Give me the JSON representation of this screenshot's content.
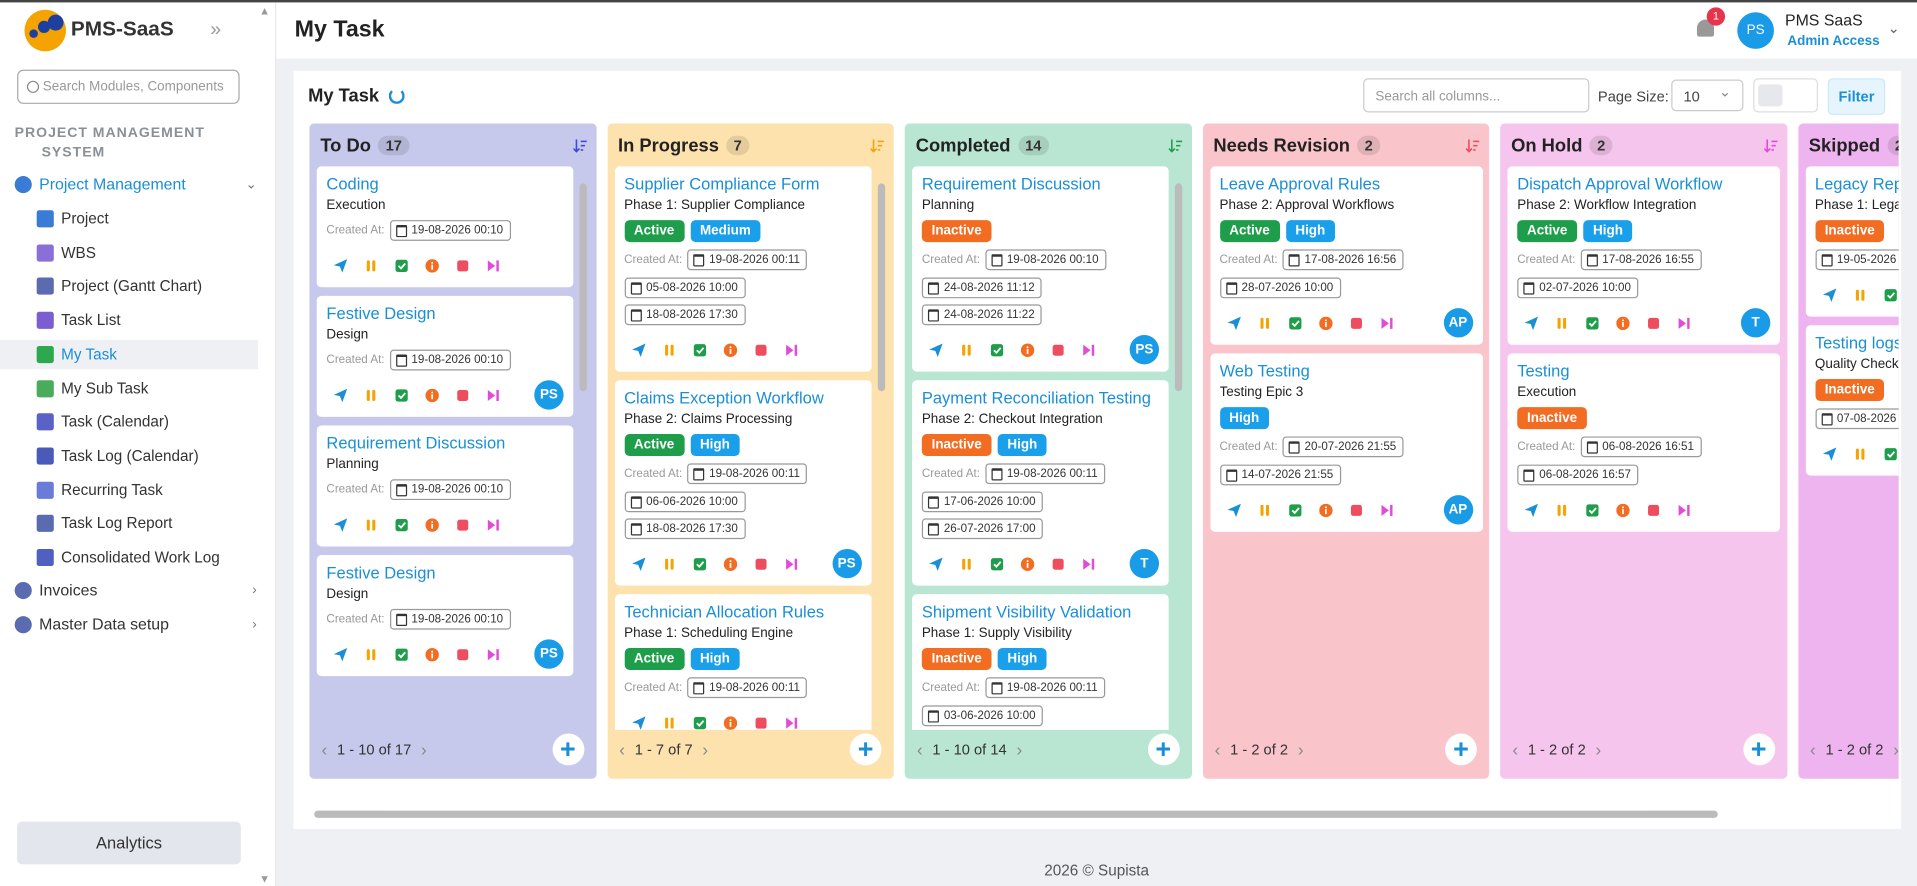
{
  "sidebar": {
    "brand": "PMS-SaaS",
    "search_placeholder": "Search Modules, Components",
    "section": "PROJECT MANAGEMENT SYSTEM",
    "menu": [
      {
        "label": "Project Management",
        "items": [
          "Project",
          "WBS",
          "Project (Gantt Chart)",
          "Task List",
          "My Task",
          "My Sub Task",
          "Task (Calendar)",
          "Task Log (Calendar)",
          "Recurring Task",
          "Task Log Report",
          "Consolidated Work Log"
        ]
      },
      {
        "label": "Invoices"
      },
      {
        "label": "Master Data setup"
      }
    ],
    "analytics": "Analytics"
  },
  "header": {
    "title": "My Task",
    "notification_count": 1,
    "user_initials": "PS",
    "user_name": "PMS SaaS",
    "user_role": "Admin Access"
  },
  "toolbar": {
    "title": "My Task",
    "search_placeholder": "Search all columns...",
    "page_size_label": "Page Size:",
    "page_size": 10,
    "filter": "Filter"
  },
  "board": {
    "created_label": "Created At:",
    "columns": [
      {
        "name": "To Do",
        "count": 17,
        "pagination": "1 - 10 of 17",
        "cards": [
          {
            "title": "Coding",
            "subtitle": "Execution",
            "tags": [],
            "created": "19-08-2026 00:10",
            "dates": []
          },
          {
            "title": "Festive Design",
            "subtitle": "Design",
            "tags": [],
            "created": "19-08-2026 00:10",
            "dates": [],
            "avatar": "PS"
          },
          {
            "title": "Requirement Discussion",
            "subtitle": "Planning",
            "tags": [],
            "created": "19-08-2026 00:10",
            "dates": []
          },
          {
            "title": "Festive Design",
            "subtitle": "Design",
            "tags": [],
            "created": "19-08-2026 00:10",
            "dates": [],
            "avatar": "PS"
          }
        ]
      },
      {
        "name": "In Progress",
        "count": 7,
        "pagination": "1 - 7 of 7",
        "cards": [
          {
            "title": "Supplier Compliance Form",
            "subtitle": "Phase 1: Supplier Compliance",
            "tags": [
              "Active",
              "Medium"
            ],
            "created": "19-08-2026 00:11",
            "dates": [
              "05-08-2026 10:00",
              "18-08-2026 17:30"
            ]
          },
          {
            "title": "Claims Exception Workflow",
            "subtitle": "Phase 2: Claims Processing",
            "tags": [
              "Active",
              "High"
            ],
            "created": "19-08-2026 00:11",
            "dates": [
              "06-06-2026 10:00",
              "18-08-2026 17:30"
            ],
            "avatar": "PS"
          },
          {
            "title": "Technician Allocation Rules",
            "subtitle": "Phase 1: Scheduling Engine",
            "tags": [
              "Active",
              "High"
            ],
            "created": "19-08-2026 00:11",
            "dates": []
          }
        ]
      },
      {
        "name": "Completed",
        "count": 14,
        "pagination": "1 - 10 of 14",
        "cards": [
          {
            "title": "Requirement Discussion",
            "subtitle": "Planning",
            "tags": [
              "Inactive"
            ],
            "created": "19-08-2026 00:10",
            "dates": [
              "24-08-2026 11:12",
              "24-08-2026 11:22"
            ],
            "avatar": "PS"
          },
          {
            "title": "Payment Reconciliation Testing",
            "subtitle": "Phase 2: Checkout Integration",
            "tags": [
              "Inactive",
              "High"
            ],
            "created": "19-08-2026 00:11",
            "dates": [
              "17-06-2026 10:00",
              "26-07-2026 17:00"
            ],
            "avatar": "T"
          },
          {
            "title": "Shipment Visibility Validation",
            "subtitle": "Phase 1: Supply Visibility",
            "tags": [
              "Inactive",
              "High"
            ],
            "created": "19-08-2026 00:11",
            "dates": [
              "03-06-2026 10:00"
            ]
          }
        ]
      },
      {
        "name": "Needs Revision",
        "count": 2,
        "pagination": "1 - 2 of 2",
        "cards": [
          {
            "title": "Leave Approval Rules",
            "subtitle": "Phase 2: Approval Workflows",
            "tags": [
              "Active",
              "High"
            ],
            "created": "17-08-2026 16:56",
            "dates": [
              "28-07-2026 10:00"
            ],
            "avatar": "AP"
          },
          {
            "title": "Web Testing",
            "subtitle": "Testing Epic 3",
            "tags": [
              "High"
            ],
            "created": "20-07-2026 21:55",
            "dates": [
              "14-07-2026 21:55"
            ],
            "avatar": "AP"
          }
        ]
      },
      {
        "name": "On Hold",
        "count": 2,
        "pagination": "1 - 2 of 2",
        "cards": [
          {
            "title": "Dispatch Approval Workflow",
            "subtitle": "Phase 2: Workflow Integration",
            "tags": [
              "Active",
              "High"
            ],
            "created": "17-08-2026 16:55",
            "dates": [
              "02-07-2026 10:00"
            ],
            "avatar": "T"
          },
          {
            "title": "Testing",
            "subtitle": "Execution",
            "tags": [
              "Inactive"
            ],
            "created": "06-08-2026 16:51",
            "dates": [
              "06-08-2026 16:57"
            ]
          }
        ]
      },
      {
        "name": "Skipped",
        "count": 2,
        "pagination": "1 - 2 of 2",
        "cards": [
          {
            "title": "Legacy Rep",
            "subtitle": "Phase 1: Legac",
            "tags": [
              "Inactive"
            ],
            "dates": [
              "19-05-2026"
            ]
          },
          {
            "title": "Testing logs",
            "subtitle": "Quality Check",
            "tags": [
              "Inactive"
            ],
            "dates": [
              "07-08-2026"
            ]
          }
        ]
      }
    ]
  },
  "footer": {
    "year": "2026 ©",
    "company": "Supista"
  }
}
